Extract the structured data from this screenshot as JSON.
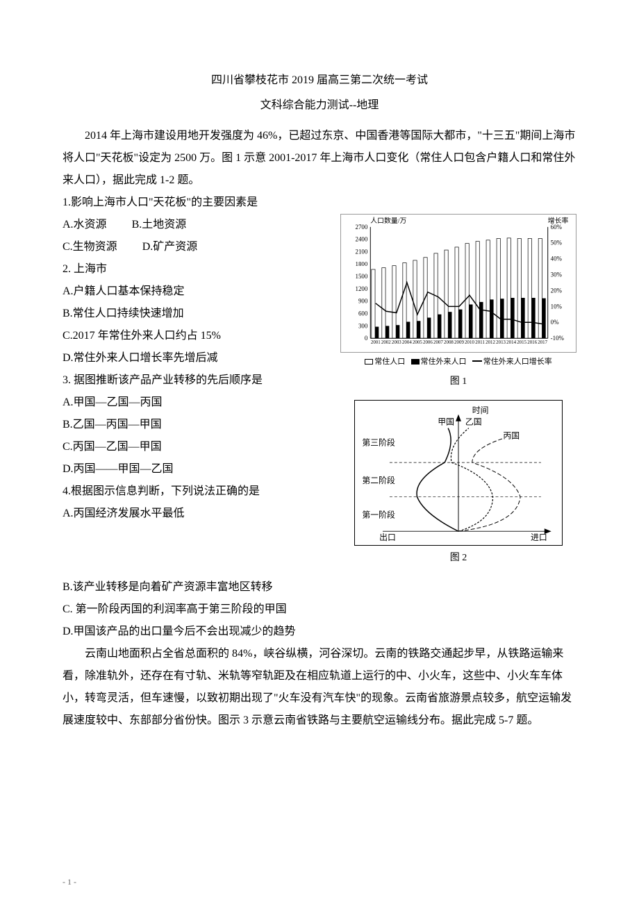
{
  "header": {
    "title": "四川省攀枝花市 2019 届高三第二次统一考试",
    "subtitle": "文科综合能力测试--地理"
  },
  "intro1": "2014 年上海市建设用地开发强度为 46%，已超过东京、中国香港等国际大都市，\"十三五\"期间上海市将人口\"天花板\"设定为 2500 万。图 1 示意 2001-2017 年上海市人口变化（常住人口包含户籍人口和常住外来人口），据此完成 1-2 题。",
  "q1": {
    "stem": "1.影响上海市人口\"天花板\"的主要因素是",
    "A": "A.水资源",
    "B": "B.土地资源",
    "C": "C.生物资源",
    "D": "D.矿产资源"
  },
  "q2": {
    "stem": "2.  上海市",
    "A": "A.户籍人口基本保持稳定",
    "B": "B.常住人口持续快速增加",
    "C": "C.2017 年常住外来人口约占 15%",
    "D": "D.常住外来人口增长率先增后减"
  },
  "q3": {
    "stem": "3.  据图推断该产品产业转移的先后顺序是",
    "A": "A.甲国—乙国—丙国",
    "B": "B.乙国—丙国—甲国",
    "C": "C.丙国—乙国—甲国",
    "D": "D.丙国——甲国—乙国"
  },
  "q4": {
    "stem": "4.根据图示信息判断，下列说法正确的是",
    "A": "A.丙国经济发展水平最低",
    "B": "B.该产业转移是向着矿产资源丰富地区转移",
    "C": "C.  第一阶段丙国的利润率高于第三阶段的甲国",
    "D": "D.甲国该产品的出口量今后不会出现减少的趋势"
  },
  "intro2": "云南山地面积占全省总面积的 84%，峡谷纵横，河谷深切。云南的铁路交通起步早，从铁路运输来看，除准轨外，还存在有寸轨、米轨等窄轨距及在相应轨道上运行的中、小火车，这些中、小火车车体小，转弯灵活，但车速慢，以致初期出现了\"火车没有汽车快\"的现象。云南省旅游景点较多，航空运输发展速度较中、东部部分省份快。图示 3 示意云南省铁路与主要航空运输线分布。据此完成 5-7 题。",
  "chart1": {
    "type": "bar+line",
    "left_axis_label": "人口数量/万",
    "right_axis_label": "增长率",
    "left_ticks": [
      0,
      300,
      600,
      900,
      1200,
      1500,
      1800,
      2100,
      2400,
      2700
    ],
    "right_ticks": [
      "-10%",
      "0%",
      "10%",
      "20%",
      "30%",
      "40%",
      "50%",
      "60%"
    ],
    "years": [
      2001,
      2002,
      2003,
      2004,
      2005,
      2006,
      2007,
      2008,
      2009,
      2010,
      2011,
      2012,
      2013,
      2014,
      2015,
      2016,
      2017
    ],
    "resident_population": [
      1670,
      1710,
      1760,
      1830,
      1890,
      1960,
      2060,
      2140,
      2210,
      2300,
      2350,
      2380,
      2420,
      2430,
      2420,
      2420,
      2420
    ],
    "migrant_population": [
      280,
      300,
      320,
      400,
      420,
      500,
      580,
      640,
      700,
      820,
      880,
      940,
      960,
      980,
      980,
      980,
      970
    ],
    "migrant_growth_rate": [
      12,
      7,
      6,
      25,
      5,
      19,
      16,
      10,
      10,
      17,
      8,
      7,
      2,
      2,
      0,
      0,
      -1
    ],
    "legend": {
      "resident": "常住人口",
      "migrant": "常住外来人口",
      "growth": "常住外来人口增长率"
    },
    "label": "图 1",
    "bar_color_white": "#ffffff",
    "bar_color_black": "#000000",
    "line_color": "#000000",
    "border_color": "#000000",
    "bg_color": "#ffffff",
    "axis_fontsize": 9,
    "left_ylim": [
      0,
      2700
    ],
    "right_ylim": [
      -10,
      60
    ]
  },
  "chart2": {
    "type": "line-diagram",
    "top_label": "时间",
    "series_labels": {
      "jia": "甲国",
      "yi": "乙国",
      "bing": "丙国"
    },
    "stage_labels": [
      "第一阶段",
      "第二阶段",
      "第三阶段"
    ],
    "x_left": "出口",
    "x_right": "进口",
    "label": "图 2",
    "line_color": "#000000",
    "border_color": "#000000",
    "bg_color": "#ffffff",
    "fontsize": 12
  },
  "page_number": "- 1 -"
}
